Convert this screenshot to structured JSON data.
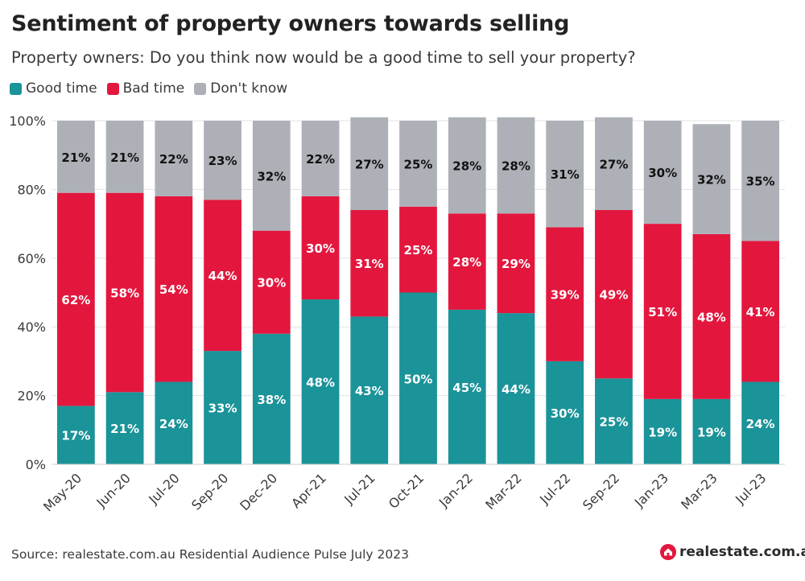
{
  "header": {
    "title": "Sentiment of property owners towards selling",
    "subtitle": "Property owners: Do you think now would be a good time to sell your property?"
  },
  "legend": [
    {
      "label": "Good time",
      "color": "#1a9399"
    },
    {
      "label": "Bad time",
      "color": "#e3173e"
    },
    {
      "label": "Don't know",
      "color": "#adb1b7"
    }
  ],
  "footer": {
    "source": "Source: realestate.com.au Residential Audience Pulse July 2023",
    "brand": "realestate.com.au",
    "brand_icon": "house-logo-icon"
  },
  "chart_data": {
    "type": "bar",
    "stacked": true,
    "categories": [
      "May-20",
      "Jun-20",
      "Jul-20",
      "Sep-20",
      "Dec-20",
      "Apr-21",
      "Jul-21",
      "Oct-21",
      "Jan-22",
      "Mar-22",
      "Jul-22",
      "Sep-22",
      "Jan-23",
      "Mar-23",
      "Jul-23"
    ],
    "series": [
      {
        "name": "Good time",
        "color": "#1a9399",
        "values": [
          17,
          21,
          24,
          33,
          38,
          48,
          43,
          50,
          45,
          44,
          30,
          25,
          19,
          19,
          24
        ]
      },
      {
        "name": "Bad time",
        "color": "#e3173e",
        "values": [
          62,
          58,
          54,
          44,
          30,
          30,
          31,
          25,
          28,
          29,
          39,
          49,
          51,
          48,
          41
        ]
      },
      {
        "name": "Don't know",
        "color": "#adb1b7",
        "values": [
          21,
          21,
          22,
          23,
          32,
          22,
          27,
          25,
          28,
          28,
          31,
          27,
          30,
          32,
          35
        ]
      }
    ],
    "ylim": [
      0,
      100
    ],
    "yticks": [
      "0%",
      "20%",
      "40%",
      "60%",
      "80%",
      "100%"
    ],
    "ytick_values": [
      0,
      20,
      40,
      60,
      80,
      100
    ],
    "label_suffix": "%",
    "grid": true
  }
}
